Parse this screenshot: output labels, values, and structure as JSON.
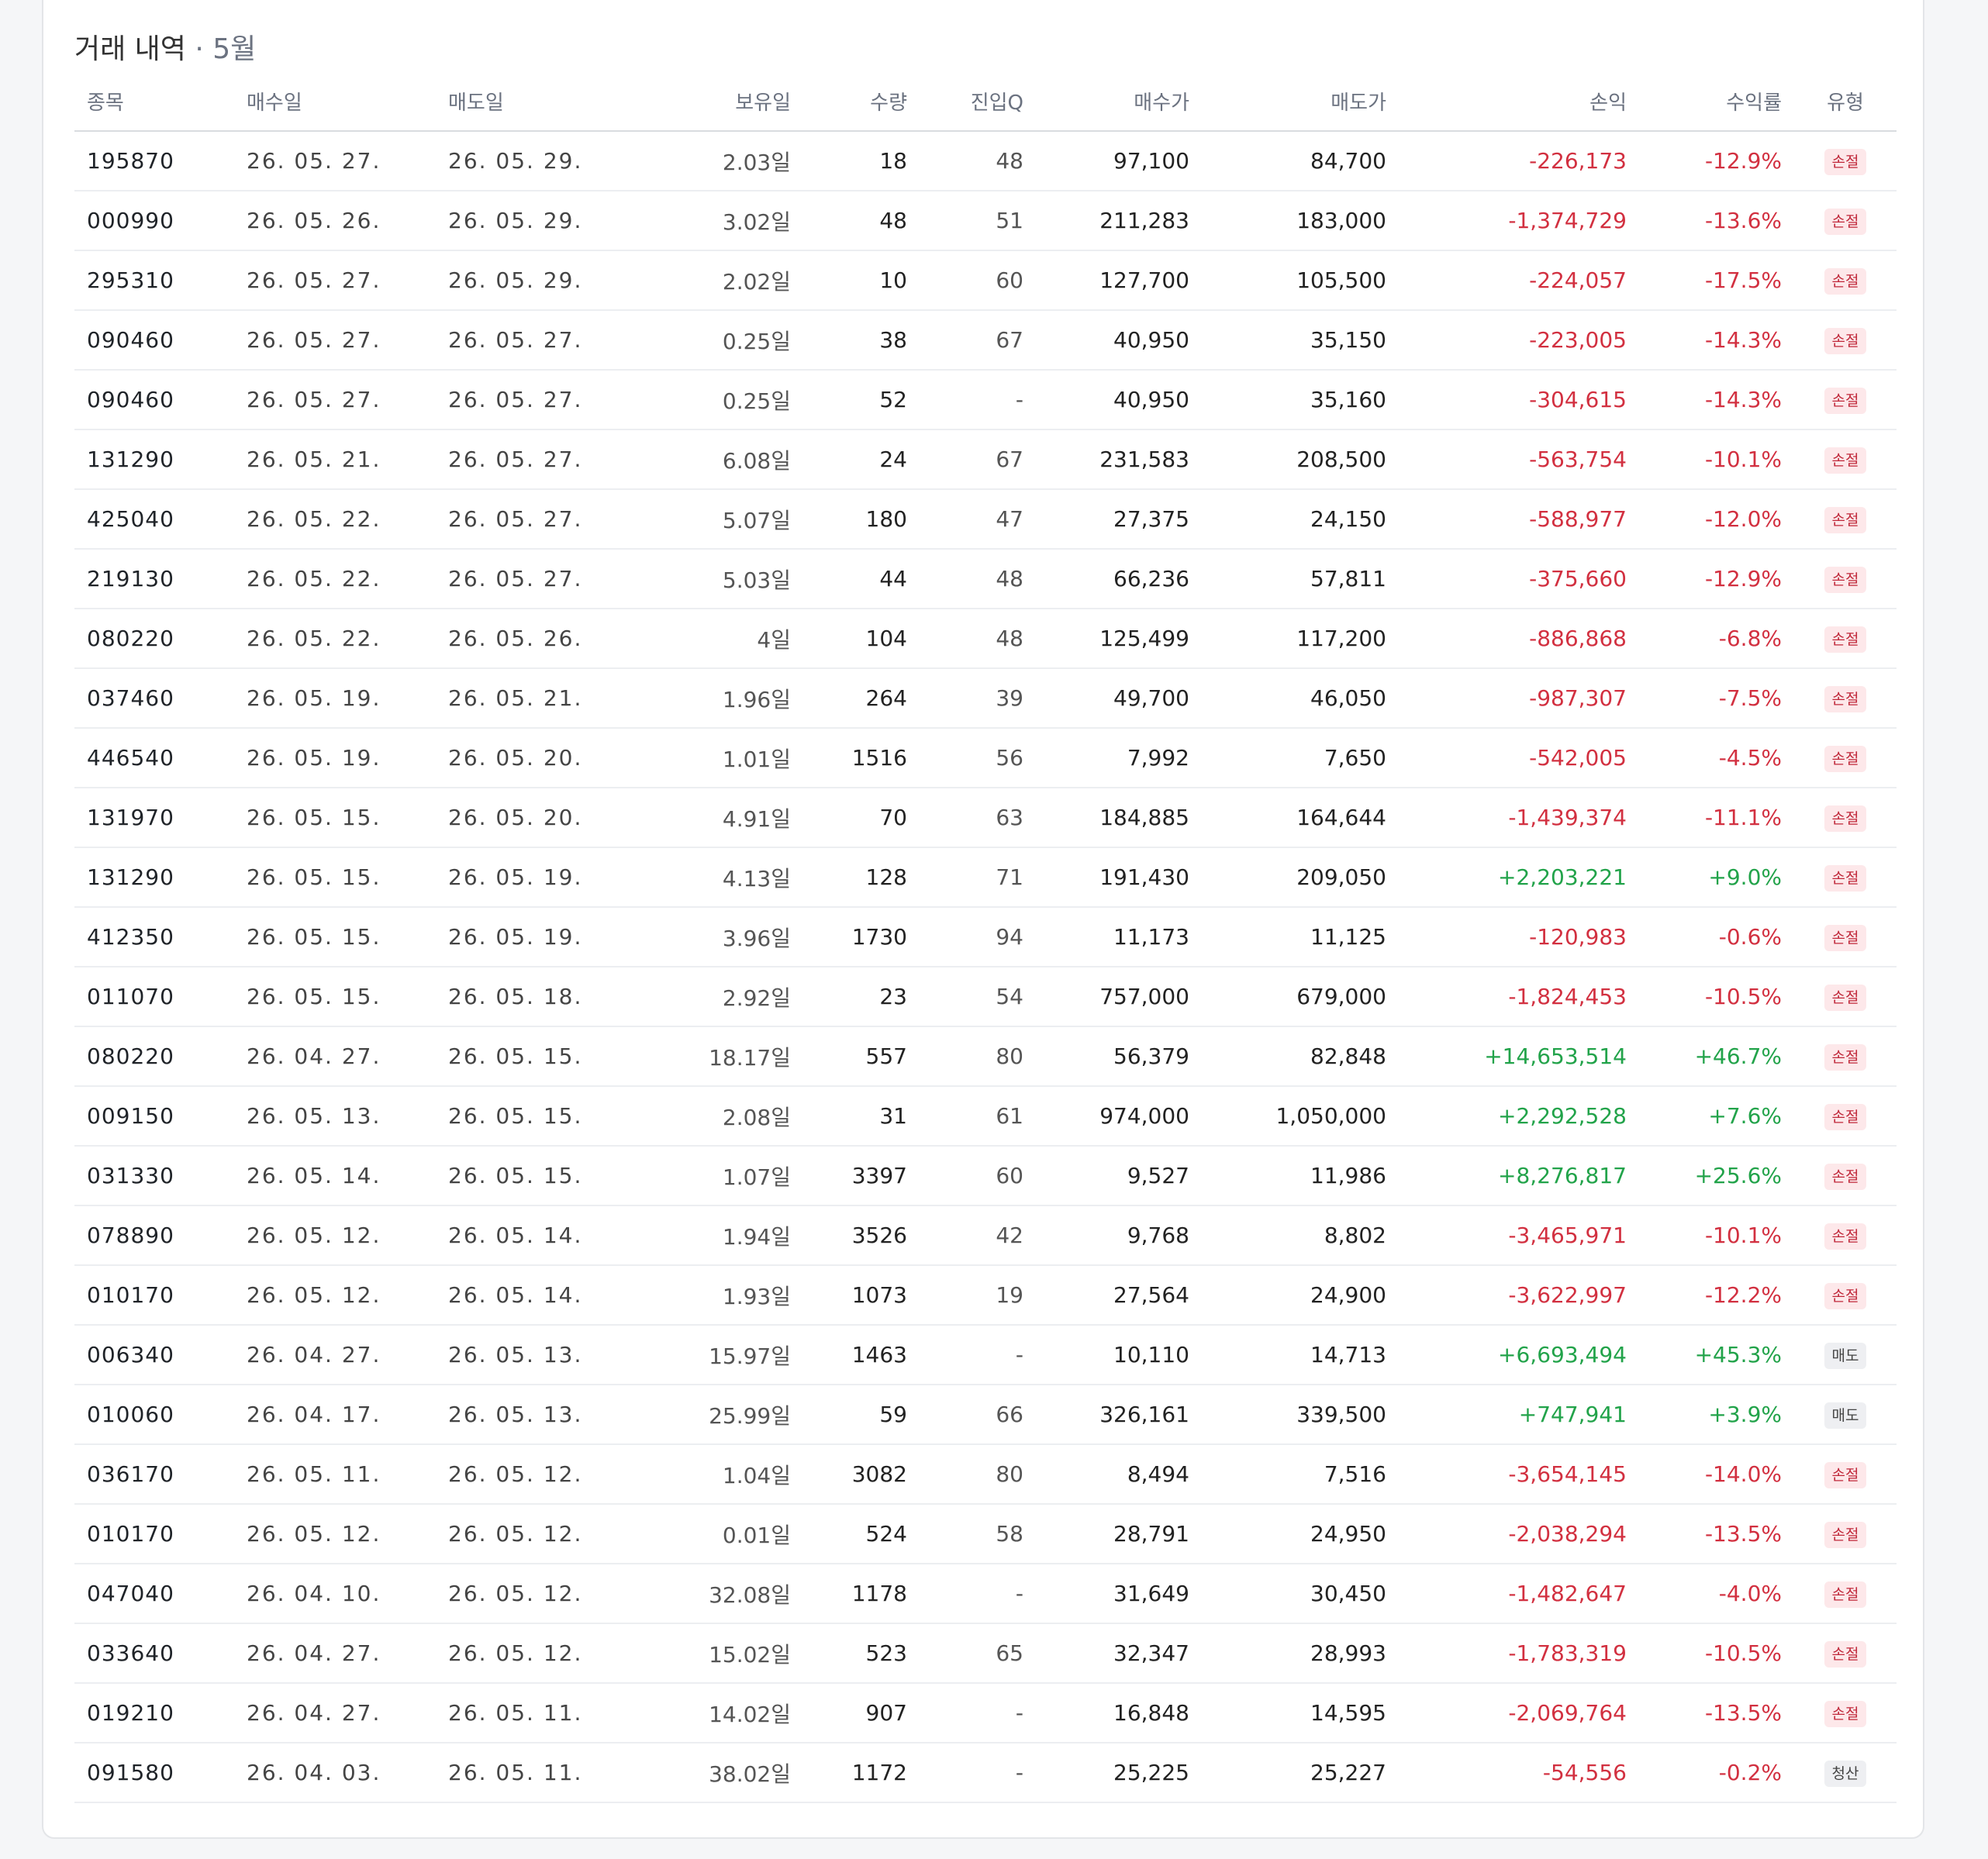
{
  "header": {
    "title": "거래 내역",
    "subtitle": "· 5월"
  },
  "columns": [
    "종목",
    "매수일",
    "매도일",
    "보유일",
    "수량",
    "진입Q",
    "매수가",
    "매도가",
    "손익",
    "수익률",
    "유형"
  ],
  "rows": [
    {
      "code": "195870",
      "buy_date": "26. 05. 27.",
      "sell_date": "26. 05. 29.",
      "hold": "2.03일",
      "qty": "18",
      "entry_q": "48",
      "buy_price": "97,100",
      "sell_price": "84,700",
      "pnl": "-226,173",
      "ret": "-12.9%",
      "type": "손절"
    },
    {
      "code": "000990",
      "buy_date": "26. 05. 26.",
      "sell_date": "26. 05. 29.",
      "hold": "3.02일",
      "qty": "48",
      "entry_q": "51",
      "buy_price": "211,283",
      "sell_price": "183,000",
      "pnl": "-1,374,729",
      "ret": "-13.6%",
      "type": "손절"
    },
    {
      "code": "295310",
      "buy_date": "26. 05. 27.",
      "sell_date": "26. 05. 29.",
      "hold": "2.02일",
      "qty": "10",
      "entry_q": "60",
      "buy_price": "127,700",
      "sell_price": "105,500",
      "pnl": "-224,057",
      "ret": "-17.5%",
      "type": "손절"
    },
    {
      "code": "090460",
      "buy_date": "26. 05. 27.",
      "sell_date": "26. 05. 27.",
      "hold": "0.25일",
      "qty": "38",
      "entry_q": "67",
      "buy_price": "40,950",
      "sell_price": "35,150",
      "pnl": "-223,005",
      "ret": "-14.3%",
      "type": "손절"
    },
    {
      "code": "090460",
      "buy_date": "26. 05. 27.",
      "sell_date": "26. 05. 27.",
      "hold": "0.25일",
      "qty": "52",
      "entry_q": "-",
      "buy_price": "40,950",
      "sell_price": "35,160",
      "pnl": "-304,615",
      "ret": "-14.3%",
      "type": "손절"
    },
    {
      "code": "131290",
      "buy_date": "26. 05. 21.",
      "sell_date": "26. 05. 27.",
      "hold": "6.08일",
      "qty": "24",
      "entry_q": "67",
      "buy_price": "231,583",
      "sell_price": "208,500",
      "pnl": "-563,754",
      "ret": "-10.1%",
      "type": "손절"
    },
    {
      "code": "425040",
      "buy_date": "26. 05. 22.",
      "sell_date": "26. 05. 27.",
      "hold": "5.07일",
      "qty": "180",
      "entry_q": "47",
      "buy_price": "27,375",
      "sell_price": "24,150",
      "pnl": "-588,977",
      "ret": "-12.0%",
      "type": "손절"
    },
    {
      "code": "219130",
      "buy_date": "26. 05. 22.",
      "sell_date": "26. 05. 27.",
      "hold": "5.03일",
      "qty": "44",
      "entry_q": "48",
      "buy_price": "66,236",
      "sell_price": "57,811",
      "pnl": "-375,660",
      "ret": "-12.9%",
      "type": "손절"
    },
    {
      "code": "080220",
      "buy_date": "26. 05. 22.",
      "sell_date": "26. 05. 26.",
      "hold": "4일",
      "qty": "104",
      "entry_q": "48",
      "buy_price": "125,499",
      "sell_price": "117,200",
      "pnl": "-886,868",
      "ret": "-6.8%",
      "type": "손절"
    },
    {
      "code": "037460",
      "buy_date": "26. 05. 19.",
      "sell_date": "26. 05. 21.",
      "hold": "1.96일",
      "qty": "264",
      "entry_q": "39",
      "buy_price": "49,700",
      "sell_price": "46,050",
      "pnl": "-987,307",
      "ret": "-7.5%",
      "type": "손절"
    },
    {
      "code": "446540",
      "buy_date": "26. 05. 19.",
      "sell_date": "26. 05. 20.",
      "hold": "1.01일",
      "qty": "1516",
      "entry_q": "56",
      "buy_price": "7,992",
      "sell_price": "7,650",
      "pnl": "-542,005",
      "ret": "-4.5%",
      "type": "손절"
    },
    {
      "code": "131970",
      "buy_date": "26. 05. 15.",
      "sell_date": "26. 05. 20.",
      "hold": "4.91일",
      "qty": "70",
      "entry_q": "63",
      "buy_price": "184,885",
      "sell_price": "164,644",
      "pnl": "-1,439,374",
      "ret": "-11.1%",
      "type": "손절"
    },
    {
      "code": "131290",
      "buy_date": "26. 05. 15.",
      "sell_date": "26. 05. 19.",
      "hold": "4.13일",
      "qty": "128",
      "entry_q": "71",
      "buy_price": "191,430",
      "sell_price": "209,050",
      "pnl": "+2,203,221",
      "ret": "+9.0%",
      "type": "손절"
    },
    {
      "code": "412350",
      "buy_date": "26. 05. 15.",
      "sell_date": "26. 05. 19.",
      "hold": "3.96일",
      "qty": "1730",
      "entry_q": "94",
      "buy_price": "11,173",
      "sell_price": "11,125",
      "pnl": "-120,983",
      "ret": "-0.6%",
      "type": "손절"
    },
    {
      "code": "011070",
      "buy_date": "26. 05. 15.",
      "sell_date": "26. 05. 18.",
      "hold": "2.92일",
      "qty": "23",
      "entry_q": "54",
      "buy_price": "757,000",
      "sell_price": "679,000",
      "pnl": "-1,824,453",
      "ret": "-10.5%",
      "type": "손절"
    },
    {
      "code": "080220",
      "buy_date": "26. 04. 27.",
      "sell_date": "26. 05. 15.",
      "hold": "18.17일",
      "qty": "557",
      "entry_q": "80",
      "buy_price": "56,379",
      "sell_price": "82,848",
      "pnl": "+14,653,514",
      "ret": "+46.7%",
      "type": "손절"
    },
    {
      "code": "009150",
      "buy_date": "26. 05. 13.",
      "sell_date": "26. 05. 15.",
      "hold": "2.08일",
      "qty": "31",
      "entry_q": "61",
      "buy_price": "974,000",
      "sell_price": "1,050,000",
      "pnl": "+2,292,528",
      "ret": "+7.6%",
      "type": "손절"
    },
    {
      "code": "031330",
      "buy_date": "26. 05. 14.",
      "sell_date": "26. 05. 15.",
      "hold": "1.07일",
      "qty": "3397",
      "entry_q": "60",
      "buy_price": "9,527",
      "sell_price": "11,986",
      "pnl": "+8,276,817",
      "ret": "+25.6%",
      "type": "손절"
    },
    {
      "code": "078890",
      "buy_date": "26. 05. 12.",
      "sell_date": "26. 05. 14.",
      "hold": "1.94일",
      "qty": "3526",
      "entry_q": "42",
      "buy_price": "9,768",
      "sell_price": "8,802",
      "pnl": "-3,465,971",
      "ret": "-10.1%",
      "type": "손절"
    },
    {
      "code": "010170",
      "buy_date": "26. 05. 12.",
      "sell_date": "26. 05. 14.",
      "hold": "1.93일",
      "qty": "1073",
      "entry_q": "19",
      "buy_price": "27,564",
      "sell_price": "24,900",
      "pnl": "-3,622,997",
      "ret": "-12.2%",
      "type": "손절"
    },
    {
      "code": "006340",
      "buy_date": "26. 04. 27.",
      "sell_date": "26. 05. 13.",
      "hold": "15.97일",
      "qty": "1463",
      "entry_q": "-",
      "buy_price": "10,110",
      "sell_price": "14,713",
      "pnl": "+6,693,494",
      "ret": "+45.3%",
      "type": "매도"
    },
    {
      "code": "010060",
      "buy_date": "26. 04. 17.",
      "sell_date": "26. 05. 13.",
      "hold": "25.99일",
      "qty": "59",
      "entry_q": "66",
      "buy_price": "326,161",
      "sell_price": "339,500",
      "pnl": "+747,941",
      "ret": "+3.9%",
      "type": "매도"
    },
    {
      "code": "036170",
      "buy_date": "26. 05. 11.",
      "sell_date": "26. 05. 12.",
      "hold": "1.04일",
      "qty": "3082",
      "entry_q": "80",
      "buy_price": "8,494",
      "sell_price": "7,516",
      "pnl": "-3,654,145",
      "ret": "-14.0%",
      "type": "손절"
    },
    {
      "code": "010170",
      "buy_date": "26. 05. 12.",
      "sell_date": "26. 05. 12.",
      "hold": "0.01일",
      "qty": "524",
      "entry_q": "58",
      "buy_price": "28,791",
      "sell_price": "24,950",
      "pnl": "-2,038,294",
      "ret": "-13.5%",
      "type": "손절"
    },
    {
      "code": "047040",
      "buy_date": "26. 04. 10.",
      "sell_date": "26. 05. 12.",
      "hold": "32.08일",
      "qty": "1178",
      "entry_q": "-",
      "buy_price": "31,649",
      "sell_price": "30,450",
      "pnl": "-1,482,647",
      "ret": "-4.0%",
      "type": "손절"
    },
    {
      "code": "033640",
      "buy_date": "26. 04. 27.",
      "sell_date": "26. 05. 12.",
      "hold": "15.02일",
      "qty": "523",
      "entry_q": "65",
      "buy_price": "32,347",
      "sell_price": "28,993",
      "pnl": "-1,783,319",
      "ret": "-10.5%",
      "type": "손절"
    },
    {
      "code": "019210",
      "buy_date": "26. 04. 27.",
      "sell_date": "26. 05. 11.",
      "hold": "14.02일",
      "qty": "907",
      "entry_q": "-",
      "buy_price": "16,848",
      "sell_price": "14,595",
      "pnl": "-2,069,764",
      "ret": "-13.5%",
      "type": "손절"
    },
    {
      "code": "091580",
      "buy_date": "26. 04. 03.",
      "sell_date": "26. 05. 11.",
      "hold": "38.02일",
      "qty": "1172",
      "entry_q": "-",
      "buy_price": "25,225",
      "sell_price": "25,227",
      "pnl": "-54,556",
      "ret": "-0.2%",
      "type": "청산"
    }
  ],
  "colors": {
    "negative": "#d23040",
    "positive": "#22a34a",
    "badge_stop_bg": "#fde8ea",
    "badge_neutral_bg": "#eeeff2"
  }
}
